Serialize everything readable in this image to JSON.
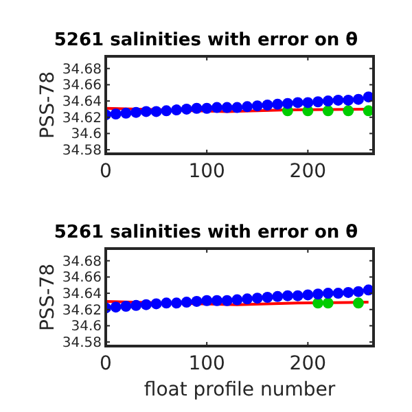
{
  "chart_data": [
    {
      "type": "scatter",
      "title": "5261 salinities with error on θ",
      "ylabel": "PSS-78",
      "xlim": [
        0,
        265
      ],
      "xticks": [
        0,
        100,
        200
      ],
      "ylim": [
        34.575,
        34.695
      ],
      "yticks": [
        34.58,
        34.6,
        34.62,
        34.64,
        34.66,
        34.68
      ],
      "series": [
        {
          "type": "line",
          "color": "#ff0000",
          "marker": "none",
          "x": [
            0,
            60,
            120,
            180,
            260
          ],
          "values": [
            34.631,
            34.629,
            34.627,
            34.629,
            34.63
          ]
        },
        {
          "color": "#00cc00",
          "marker": "circle",
          "x": [
            180,
            200,
            220,
            240,
            260
          ],
          "values": [
            34.628,
            34.628,
            34.628,
            34.628,
            34.628
          ]
        },
        {
          "color": "#0000ff",
          "marker": "circle",
          "x": [
            0,
            10,
            20,
            30,
            40,
            50,
            60,
            70,
            80,
            90,
            100,
            110,
            120,
            130,
            140,
            150,
            160,
            170,
            180,
            190,
            200,
            210,
            220,
            230,
            240,
            250,
            260
          ],
          "values": [
            34.623,
            34.624,
            34.625,
            34.626,
            34.627,
            34.627,
            34.628,
            34.629,
            34.63,
            34.631,
            34.631,
            34.632,
            34.632,
            34.632,
            34.633,
            34.634,
            34.635,
            34.636,
            34.637,
            34.638,
            34.638,
            34.639,
            34.64,
            34.641,
            34.641,
            34.642,
            34.645
          ]
        }
      ]
    },
    {
      "type": "scatter",
      "title": "5261 salinities with error on θ",
      "ylabel": "PSS-78",
      "xlabel": "float profile number",
      "xlim": [
        0,
        265
      ],
      "xticks": [
        0,
        100,
        200
      ],
      "ylim": [
        34.575,
        34.695
      ],
      "yticks": [
        34.58,
        34.6,
        34.62,
        34.64,
        34.66,
        34.68
      ],
      "series": [
        {
          "type": "line",
          "color": "#ff0000",
          "marker": "none",
          "x": [
            0,
            60,
            130,
            190,
            260
          ],
          "values": [
            34.63,
            34.628,
            34.626,
            34.628,
            34.629
          ]
        },
        {
          "color": "#00cc00",
          "marker": "circle",
          "x": [
            210,
            220,
            250
          ],
          "values": [
            34.628,
            34.628,
            34.628
          ]
        },
        {
          "color": "#0000ff",
          "marker": "circle",
          "x": [
            0,
            10,
            20,
            30,
            40,
            50,
            60,
            70,
            80,
            90,
            100,
            110,
            120,
            130,
            140,
            150,
            160,
            170,
            180,
            190,
            200,
            210,
            220,
            230,
            240,
            250,
            260
          ],
          "values": [
            34.622,
            34.623,
            34.624,
            34.625,
            34.626,
            34.627,
            34.628,
            34.628,
            34.629,
            34.63,
            34.631,
            34.631,
            34.631,
            34.632,
            34.633,
            34.634,
            34.635,
            34.636,
            34.637,
            34.637,
            34.638,
            34.639,
            34.64,
            34.64,
            34.641,
            34.642,
            34.644
          ]
        }
      ]
    }
  ]
}
